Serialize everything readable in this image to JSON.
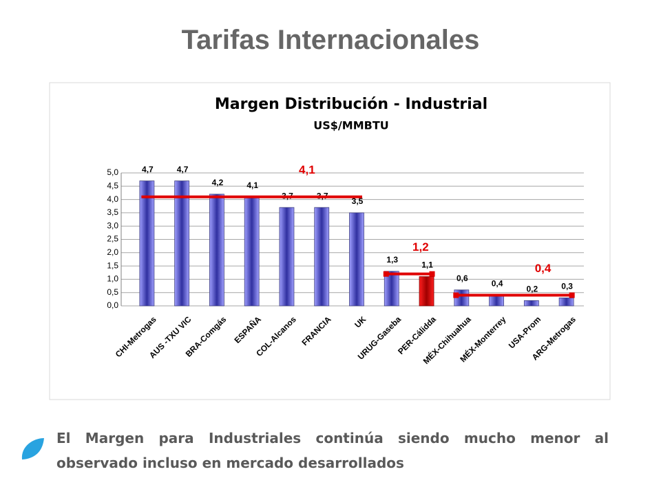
{
  "header": {
    "title": "Tarifas Internacionales"
  },
  "chart_data": {
    "type": "bar",
    "title": "Margen Distribución - Industrial",
    "subtitle": "US$/MMBTU",
    "categories": [
      "CHI-Metrogas",
      "AUS -TXU VIC",
      "BRA-Comgás",
      "ESPAÑA",
      "COL-Alcanos",
      "FRANCIA",
      "UK",
      "URUG-Gaseba",
      "PER-Cálidda",
      "MÉX-Chihuahua",
      "MÉX-Monterrey",
      "USA-Prom",
      "ARG-Metrogas"
    ],
    "values": [
      4.7,
      4.7,
      4.2,
      4.1,
      3.7,
      3.7,
      3.5,
      1.3,
      1.1,
      0.6,
      0.4,
      0.2,
      0.3
    ],
    "value_labels": [
      "4,7",
      "4,7",
      "4,2",
      "4,1",
      "3,7",
      "3,7",
      "3,5",
      "1,3",
      "1,1",
      "0,6",
      "0,4",
      "0,2",
      "0,3"
    ],
    "colors": [
      "#8080ff",
      "#8080ff",
      "#8080ff",
      "#8080ff",
      "#8080ff",
      "#8080ff",
      "#8080ff",
      "#8080ff",
      "#e00000",
      "#8080ff",
      "#8080ff",
      "#8080ff",
      "#8080ff"
    ],
    "ylim": [
      0,
      5
    ],
    "yticks": [
      {
        "value": 0,
        "label": "0,0"
      },
      {
        "value": 0.5,
        "label": "0,5"
      },
      {
        "value": 1,
        "label": "1,0"
      },
      {
        "value": 1.5,
        "label": "1,5"
      },
      {
        "value": 2,
        "label": "2,0"
      },
      {
        "value": 2.5,
        "label": "2,5"
      },
      {
        "value": 3,
        "label": "3,0"
      },
      {
        "value": 3.5,
        "label": "3,5"
      },
      {
        "value": 4,
        "label": "4,0"
      },
      {
        "value": 4.5,
        "label": "4,5"
      },
      {
        "value": 5,
        "label": "5,0"
      }
    ],
    "grid": true,
    "averages": [
      {
        "value": 4.1,
        "label": "4,1",
        "start_category": "CHI-Metrogas",
        "end_category": "UK",
        "color": "#e00000"
      },
      {
        "value": 1.2,
        "label": "1,2",
        "start_category": "URUG-Gaseba",
        "end_category": "PER-Cálidda",
        "color": "#e00000"
      },
      {
        "value": 0.4,
        "label": "0,4",
        "start_category": "MÉX-Chihuahua",
        "end_category": "ARG-Metrogas",
        "color": "#e00000"
      }
    ]
  },
  "footer": {
    "text": "El Margen para Industriales continúa siendo mucho menor al observado incluso en mercado desarrollados"
  }
}
